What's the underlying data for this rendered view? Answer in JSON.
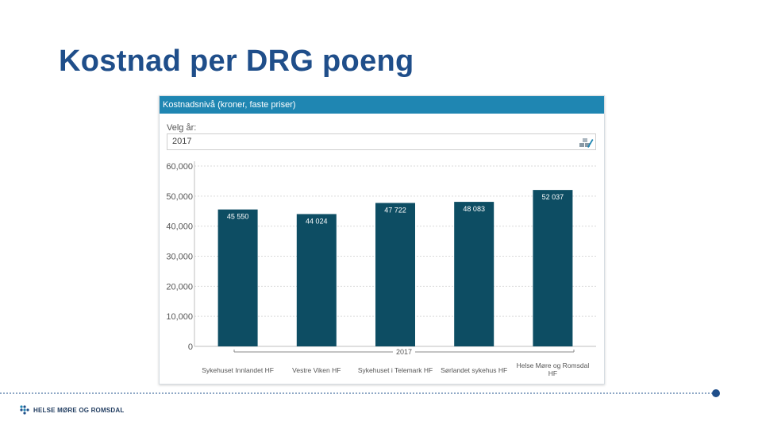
{
  "slide": {
    "title": "Kostnad per DRG poeng"
  },
  "panel": {
    "header": "Kostnadsnivå (kroner, faste priser)",
    "filter_label": "Velg år:",
    "filter_value": "2017",
    "filter_icon": "filter-edit-icon"
  },
  "chart_data": {
    "type": "bar",
    "categories": [
      "Sykehuset Innlandet HF",
      "Vestre Viken HF",
      "Sykehuset i Telemark HF",
      "Sørlandet sykehus HF",
      "Helse Møre og Romsdal HF"
    ],
    "category_lines": [
      [
        "Sykehuset Innlandet HF"
      ],
      [
        "Vestre Viken HF"
      ],
      [
        "Sykehuset i Telemark HF"
      ],
      [
        "Sørlandet sykehus HF"
      ],
      [
        "Helse Møre og Romsdal",
        "HF"
      ]
    ],
    "values": [
      45550,
      44024,
      47722,
      48083,
      52037
    ],
    "data_labels": [
      "45 550",
      "44 024",
      "47 722",
      "48 083",
      "52 037"
    ],
    "group_label": "2017",
    "y_ticks": [
      0,
      10000,
      20000,
      30000,
      40000,
      50000,
      60000
    ],
    "y_tick_labels": [
      "0",
      "10,000",
      "20,000",
      "30,000",
      "40,000",
      "50,000",
      "60,000"
    ],
    "ylim": [
      0,
      60000
    ],
    "grid": true,
    "bar_color": "#0d4d63"
  },
  "footer": {
    "logo_text": "HELSE MØRE OG ROMSDAL",
    "accent_color": "#1f4e8a"
  }
}
